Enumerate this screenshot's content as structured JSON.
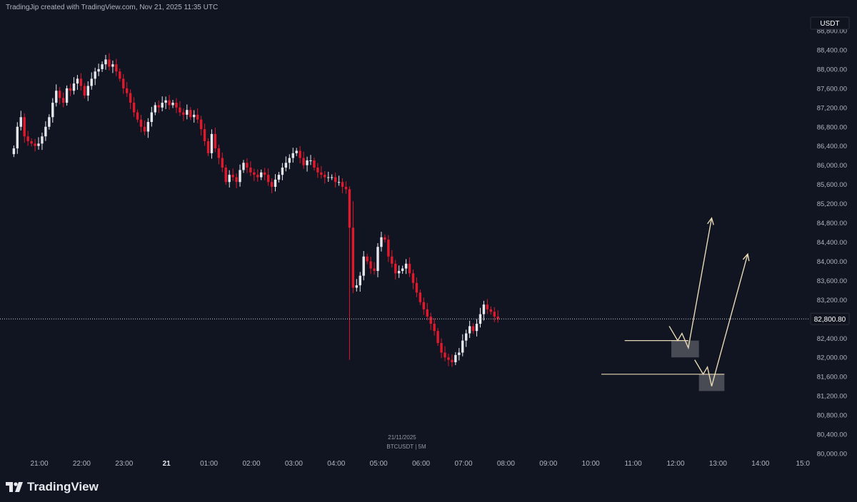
{
  "header": {
    "attribution": "TradingJip created with TradingView.com, Nov 21, 2025 11:35 UTC"
  },
  "footer": {
    "brand": "TradingView"
  },
  "chart_data": {
    "type": "candlestick",
    "symbol_caption": "BTCUSDT | 5M",
    "date_caption": "21/11/2025",
    "currency_badge": "USDT",
    "current_price_label": "82,800.80",
    "current_price": 82800.8,
    "ylim": [
      80000,
      89000
    ],
    "y_ticks": [
      80000,
      80400,
      80800,
      81200,
      81600,
      82000,
      82400,
      82800,
      83200,
      83600,
      84000,
      84400,
      84800,
      85200,
      85600,
      86000,
      86400,
      86800,
      87200,
      87600,
      88000,
      88400,
      88800
    ],
    "y_tick_labels": [
      "80,000.00",
      "80,400.00",
      "80,800.00",
      "81,200.00",
      "81,600.00",
      "82,000.00",
      "82,400.00",
      "82,800.00",
      "83,200.00",
      "83,600.00",
      "84,000.00",
      "84,400.00",
      "84,800.00",
      "85,200.00",
      "85,600.00",
      "86,000.00",
      "86,400.00",
      "86,800.00",
      "87,200.00",
      "87,600.00",
      "88,000.00",
      "88,400.00",
      "88,800.00"
    ],
    "x_ticks": [
      {
        "hour": 21.0,
        "label": "21:00",
        "bold": false
      },
      {
        "hour": 22.0,
        "label": "22:00",
        "bold": false
      },
      {
        "hour": 23.0,
        "label": "23:00",
        "bold": false
      },
      {
        "hour": 24.0,
        "label": "21",
        "bold": true
      },
      {
        "hour": 25.0,
        "label": "01:00",
        "bold": false
      },
      {
        "hour": 26.0,
        "label": "02:00",
        "bold": false
      },
      {
        "hour": 27.0,
        "label": "03:00",
        "bold": false
      },
      {
        "hour": 28.0,
        "label": "04:00",
        "bold": false
      },
      {
        "hour": 29.0,
        "label": "05:00",
        "bold": false
      },
      {
        "hour": 30.0,
        "label": "06:00",
        "bold": false
      },
      {
        "hour": 31.0,
        "label": "07:00",
        "bold": false
      },
      {
        "hour": 32.0,
        "label": "08:00",
        "bold": false
      },
      {
        "hour": 33.0,
        "label": "09:00",
        "bold": false
      },
      {
        "hour": 34.0,
        "label": "10:00",
        "bold": false
      },
      {
        "hour": 35.0,
        "label": "11:00",
        "bold": false
      },
      {
        "hour": 36.0,
        "label": "12:00",
        "bold": false
      },
      {
        "hour": 37.0,
        "label": "13:00",
        "bold": false
      },
      {
        "hour": 38.0,
        "label": "14:00",
        "bold": false
      },
      {
        "hour": 39.0,
        "label": "15:0",
        "bold": false
      }
    ],
    "candle_interval_hours": 0.0833,
    "first_candle_hour": 20.4,
    "closes": [
      86350,
      86800,
      87000,
      86600,
      86500,
      86450,
      86400,
      86450,
      86600,
      86800,
      87000,
      87300,
      87550,
      87400,
      87300,
      87600,
      87550,
      87700,
      87800,
      87650,
      87450,
      87650,
      87800,
      87950,
      88000,
      88100,
      88200,
      88050,
      88100,
      87950,
      87800,
      87600,
      87500,
      87300,
      87100,
      86950,
      86800,
      86700,
      86900,
      87100,
      87250,
      87200,
      87300,
      87350,
      87250,
      87300,
      87200,
      87100,
      87050,
      87150,
      87000,
      87050,
      86950,
      86750,
      86500,
      86250,
      86650,
      86350,
      86150,
      85950,
      85650,
      85800,
      85750,
      85650,
      85900,
      86050,
      85950,
      85850,
      85800,
      85750,
      85850,
      85800,
      85650,
      85550,
      85700,
      85800,
      85950,
      86050,
      86150,
      86250,
      86300,
      86150,
      86000,
      86100,
      86100,
      85950,
      85850,
      85800,
      85750,
      85750,
      85750,
      85650,
      85650,
      85550,
      85500,
      84700,
      83450,
      83500,
      83700,
      84100,
      84000,
      83850,
      83800,
      84300,
      84500,
      84450,
      84100,
      83950,
      83750,
      83800,
      83850,
      83950,
      83750,
      83550,
      83350,
      83150,
      83000,
      82850,
      82700,
      82550,
      82300,
      82100,
      82000,
      81950,
      81900,
      82050,
      82100,
      82350,
      82500,
      82650,
      82550,
      82700,
      82900,
      83100,
      83000,
      82950,
      82850,
      82800
    ],
    "wicks": [
      {
        "i": 95,
        "low": 81950
      },
      {
        "i": 96,
        "high": 85250
      }
    ],
    "annotations": [
      {
        "type": "path",
        "label": "projection-path-1",
        "points": [
          [
            35.85,
            82650
          ],
          [
            36.05,
            82350
          ],
          [
            36.15,
            82500
          ],
          [
            36.3,
            82200
          ],
          [
            36.85,
            84900
          ]
        ]
      },
      {
        "type": "path",
        "label": "projection-path-2",
        "points": [
          [
            36.45,
            81950
          ],
          [
            36.65,
            81650
          ],
          [
            36.75,
            81800
          ],
          [
            36.85,
            81400
          ],
          [
            37.7,
            84150
          ]
        ]
      },
      {
        "type": "hline",
        "label": "support-line-1",
        "x1": 34.8,
        "x2": 36.3,
        "y": 82350
      },
      {
        "type": "hline",
        "label": "support-line-2",
        "x1": 34.25,
        "x2": 37.15,
        "y": 81650
      },
      {
        "type": "box",
        "label": "demand-zone-1",
        "x1": 35.9,
        "x2": 36.55,
        "y1": 82000,
        "y2": 82350
      },
      {
        "type": "box",
        "label": "demand-zone-2",
        "x1": 36.55,
        "x2": 37.15,
        "y1": 81300,
        "y2": 81650
      }
    ],
    "colors": {
      "background": "#101521",
      "up": "#e6e8ee",
      "down": "#e0192d",
      "axis_text": "#b2b5be",
      "annotation": "#e8d9b6",
      "zone_fill": "#5b5e66"
    }
  }
}
